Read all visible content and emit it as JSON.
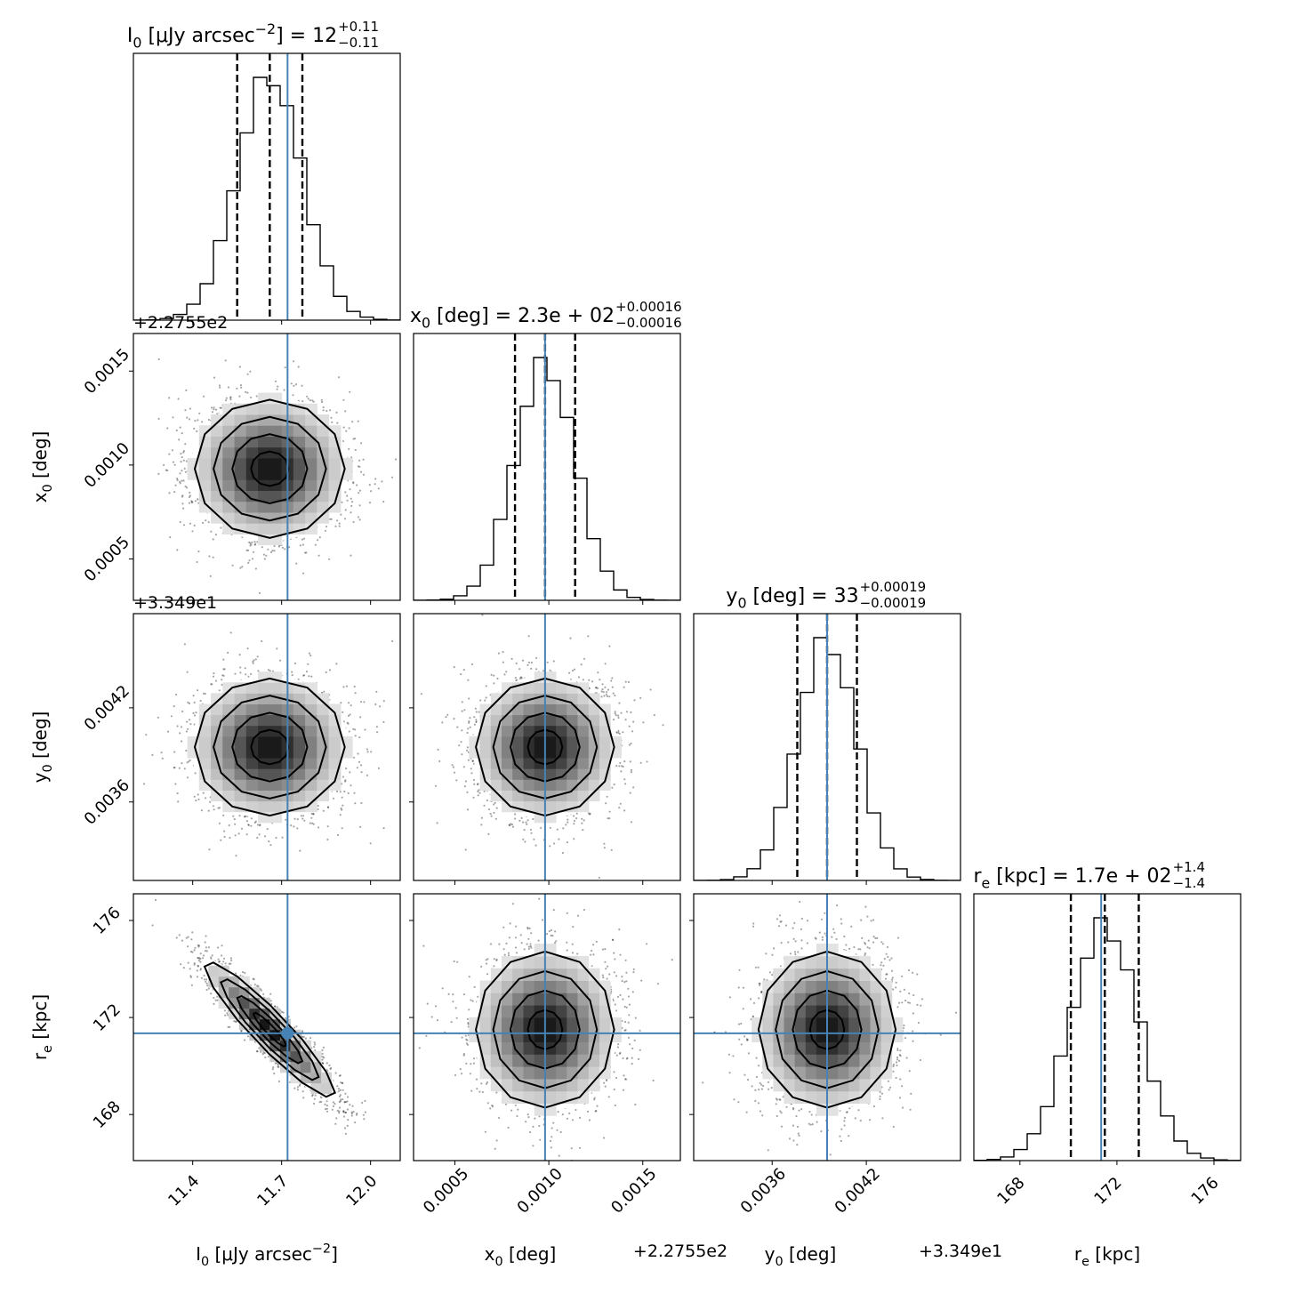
{
  "chart_data": {
    "type": "corner",
    "parameters": [
      {
        "key": "I0",
        "axis_label": "I_0 [μJy arcsec^-2]",
        "title_lhs": "I_0 [μJy arcsec^-2] = 12",
        "title_plus": "+0.11",
        "title_minus": "−0.11",
        "range": [
          11.2,
          12.1
        ],
        "ticks": [
          11.4,
          11.7,
          12.0
        ],
        "tick_labels": [
          "11.4",
          "11.7",
          "12.0"
        ],
        "offset_text": "",
        "median": 11.66,
        "q16": 11.55,
        "q84": 11.77,
        "sigma": 0.11,
        "truth": 11.72
      },
      {
        "key": "x0",
        "axis_label": "x_0 [deg]",
        "title_lhs": "x_0 [deg] = 2.3e + 02",
        "title_plus": "+0.00016",
        "title_minus": "−0.00016",
        "range": [
          0.00028,
          0.0017
        ],
        "ticks": [
          0.0005,
          0.001,
          0.0015
        ],
        "tick_labels": [
          "0.0005",
          "0.0010",
          "0.0015"
        ],
        "offset_text": "+2.2755e2",
        "median": 0.00098,
        "q16": 0.00082,
        "q84": 0.00114,
        "sigma": 0.00016,
        "truth": 0.00098
      },
      {
        "key": "y0",
        "axis_label": "y_0 [deg]",
        "title_lhs": "y_0 [deg] = 33",
        "title_plus": "+0.00019",
        "title_minus": "−0.00019",
        "range": [
          0.0031,
          0.0048
        ],
        "ticks": [
          0.0036,
          0.0042
        ],
        "tick_labels": [
          "0.0036",
          "0.0042"
        ],
        "offset_text": "+3.349e1",
        "median": 0.00395,
        "q16": 0.00376,
        "q84": 0.00414,
        "sigma": 0.00019,
        "truth": 0.00395
      },
      {
        "key": "re",
        "axis_label": "r_e [kpc]",
        "title_lhs": "r_e [kpc] = 1.7e + 02",
        "title_plus": "+1.4",
        "title_minus": "−1.4",
        "range": [
          166.1,
          177.1
        ],
        "ticks": [
          168,
          172,
          176
        ],
        "tick_labels": [
          "168",
          "172",
          "176"
        ],
        "offset_text": "",
        "median": 171.5,
        "q16": 170.1,
        "q84": 172.9,
        "sigma": 1.4,
        "truth": 171.35
      }
    ],
    "correlations": {
      "I0-re": -0.93,
      "I0-x0": 0,
      "I0-y0": 0,
      "x0-y0": 0,
      "x0-re": 0,
      "y0-re": 0
    },
    "contour_levels_sigma": [
      0.5,
      1.0,
      1.5,
      2.0
    ],
    "truth_color": "#4682b4",
    "grid": false
  }
}
